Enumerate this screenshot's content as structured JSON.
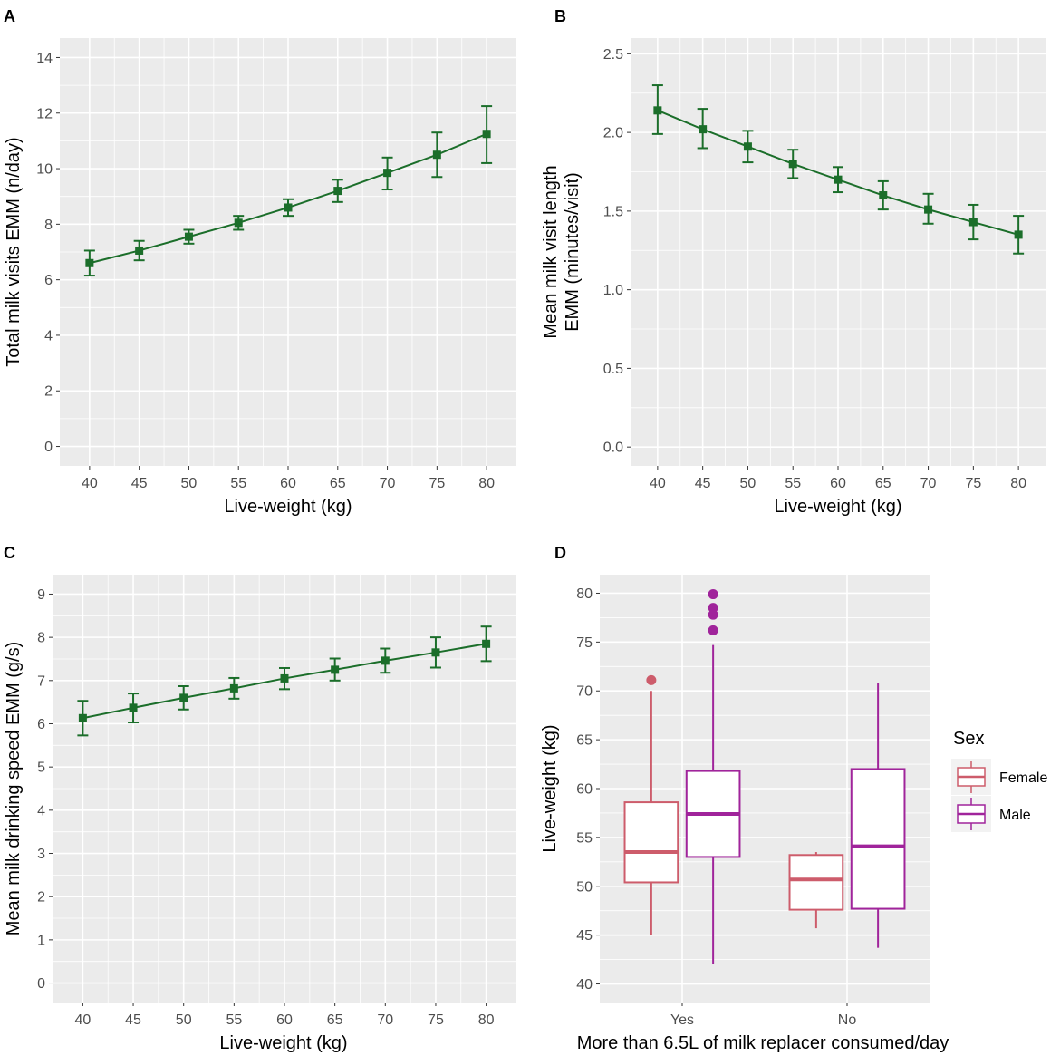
{
  "colors": {
    "panel_bg": "#ebebeb",
    "grid": "#ffffff",
    "line": "#1b6e2a",
    "female": "#cd5c6b",
    "male": "#a0249b",
    "tick_text": "#4d4d4d"
  },
  "chart_data": [
    {
      "id": "A",
      "type": "line",
      "panel_label": "A",
      "xlabel": "Live-weight (kg)",
      "ylabel": "Total milk visits EMM (n/day)",
      "x": [
        40,
        45,
        50,
        55,
        60,
        65,
        70,
        75,
        80
      ],
      "y": [
        6.6,
        7.05,
        7.55,
        8.05,
        8.6,
        9.2,
        9.85,
        10.5,
        11.25
      ],
      "lower": [
        6.15,
        6.7,
        7.3,
        7.8,
        8.3,
        8.8,
        9.25,
        9.7,
        10.2
      ],
      "upper": [
        7.05,
        7.4,
        7.8,
        8.3,
        8.9,
        9.6,
        10.4,
        11.3,
        12.25
      ],
      "xlim": [
        37,
        83
      ],
      "ylim": [
        -0.7,
        14.7
      ],
      "xticks": [
        "40",
        "45",
        "50",
        "55",
        "60",
        "65",
        "70",
        "75",
        "80"
      ],
      "yticks": [
        "0",
        "2",
        "4",
        "6",
        "8",
        "10",
        "12",
        "14"
      ]
    },
    {
      "id": "B",
      "type": "line",
      "panel_label": "B",
      "xlabel": "Live-weight (kg)",
      "ylabel_line1": "Mean milk visit length",
      "ylabel_line2": "EMM (minutes/visit)",
      "x": [
        40,
        45,
        50,
        55,
        60,
        65,
        70,
        75,
        80
      ],
      "y": [
        2.14,
        2.02,
        1.91,
        1.8,
        1.7,
        1.6,
        1.51,
        1.43,
        1.35
      ],
      "lower": [
        1.99,
        1.9,
        1.81,
        1.71,
        1.62,
        1.51,
        1.42,
        1.32,
        1.23
      ],
      "upper": [
        2.3,
        2.15,
        2.01,
        1.89,
        1.78,
        1.69,
        1.61,
        1.54,
        1.47
      ],
      "xlim": [
        37,
        83
      ],
      "ylim": [
        -0.12,
        2.6
      ],
      "xticks": [
        "40",
        "45",
        "50",
        "55",
        "60",
        "65",
        "70",
        "75",
        "80"
      ],
      "yticks": [
        "0.0",
        "0.5",
        "1.0",
        "1.5",
        "2.0",
        "2.5"
      ]
    },
    {
      "id": "C",
      "type": "line",
      "panel_label": "C",
      "xlabel": "Live-weight (kg)",
      "ylabel": "Mean milk drinking speed EMM (g/s)",
      "x": [
        40,
        45,
        50,
        55,
        60,
        65,
        70,
        75,
        80
      ],
      "y": [
        6.13,
        6.37,
        6.6,
        6.82,
        7.05,
        7.25,
        7.46,
        7.65,
        7.85
      ],
      "lower": [
        5.73,
        6.03,
        6.33,
        6.58,
        6.8,
        7.0,
        7.18,
        7.3,
        7.45
      ],
      "upper": [
        6.53,
        6.7,
        6.87,
        7.06,
        7.29,
        7.51,
        7.74,
        8.0,
        8.25
      ],
      "xlim": [
        37,
        83
      ],
      "ylim": [
        -0.45,
        9.45
      ],
      "xticks": [
        "40",
        "45",
        "50",
        "55",
        "60",
        "65",
        "70",
        "75",
        "80"
      ],
      "yticks": [
        "0",
        "1",
        "2",
        "3",
        "4",
        "5",
        "6",
        "7",
        "8",
        "9"
      ]
    },
    {
      "id": "D",
      "type": "boxplot",
      "panel_label": "D",
      "xlabel": "More than 6.5L of milk replacer consumed/day",
      "ylabel": "Live-weight (kg)",
      "categories": [
        "Yes",
        "No"
      ],
      "ylim": [
        38.1,
        81.9
      ],
      "yticks": [
        "40",
        "45",
        "50",
        "55",
        "60",
        "65",
        "70",
        "75",
        "80"
      ],
      "legend": {
        "title": "Sex",
        "position": "right",
        "entries": [
          "Female",
          "Male"
        ]
      },
      "series": [
        {
          "name": "Female",
          "boxes": [
            {
              "category": "Yes",
              "min": 45.0,
              "q1": 50.4,
              "median": 53.5,
              "q3": 58.6,
              "max": 70.0,
              "outliers": [
                71.1
              ]
            },
            {
              "category": "No",
              "min": 45.7,
              "q1": 47.6,
              "median": 50.7,
              "q3": 53.2,
              "max": 53.5,
              "outliers": []
            }
          ]
        },
        {
          "name": "Male",
          "boxes": [
            {
              "category": "Yes",
              "min": 42.0,
              "q1": 53.0,
              "median": 57.4,
              "q3": 61.8,
              "max": 74.7,
              "outliers": [
                76.2,
                77.8,
                78.5,
                79.9
              ]
            },
            {
              "category": "No",
              "min": 43.7,
              "q1": 47.7,
              "median": 54.1,
              "q3": 62.0,
              "max": 70.8,
              "outliers": []
            }
          ]
        }
      ]
    }
  ]
}
